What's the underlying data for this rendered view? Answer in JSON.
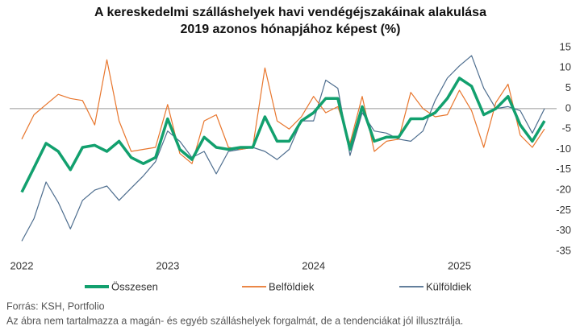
{
  "chart_data": {
    "type": "line",
    "title": [
      "A kereskedelmi szálláshelyek havi vendégéjszakáinak alakulása",
      "2019 azonos hónapjához képest (%)"
    ],
    "categories": [
      "2022",
      null,
      null,
      null,
      null,
      null,
      null,
      null,
      null,
      null,
      null,
      null,
      "2023",
      null,
      null,
      null,
      null,
      null,
      null,
      null,
      null,
      null,
      null,
      null,
      "2024",
      null,
      null,
      null,
      null,
      null,
      null,
      null,
      null,
      null,
      null,
      null,
      "2025",
      null,
      null,
      null,
      null,
      null,
      null,
      null
    ],
    "series": [
      {
        "name": "Összesen",
        "color": "#12a06e",
        "width": 3.5,
        "values": [
          -20.5,
          -14.5,
          -8.5,
          -10.5,
          -15,
          -9.5,
          -9,
          -10.5,
          -8,
          -12,
          -13.5,
          -12,
          -2.5,
          -10,
          -12.5,
          -7,
          -9.5,
          -10,
          -9.5,
          -9.5,
          -2,
          -8,
          -8,
          -3,
          -1,
          2.5,
          2.5,
          -10,
          0.5,
          -8,
          -7,
          -7,
          -2.5,
          -2.5,
          -1,
          2.5,
          7.5,
          5.5,
          -1.5,
          0,
          3,
          -4,
          -8,
          -3
        ]
      },
      {
        "name": "Belföldiek",
        "color": "#e8762d",
        "width": 1.2,
        "values": [
          -7.5,
          -1.5,
          1,
          3.5,
          2.5,
          2,
          -4,
          12,
          -3,
          -10.5,
          -10,
          -9.5,
          1,
          -11,
          -13.5,
          -3,
          -1.5,
          -9.5,
          -10,
          -9.5,
          10,
          -3,
          -5,
          -2,
          3,
          -1,
          0.5,
          -8.5,
          3,
          -10.5,
          -8,
          -7.5,
          4,
          0,
          -2,
          -1.5,
          4.5,
          -0.5,
          -9.5,
          1.5,
          6,
          -6.5,
          -9.5,
          -5
        ]
      },
      {
        "name": "Külföldiek",
        "color": "#4d6d8e",
        "width": 1.2,
        "values": [
          -32.5,
          -27,
          -18,
          -23,
          -29.5,
          -22.5,
          -20,
          -19,
          -22.5,
          -19.5,
          -16.5,
          -13,
          -5.5,
          -8,
          -12,
          -10.5,
          -16,
          -10.5,
          -10,
          -9.5,
          -10.5,
          -12.5,
          -10,
          -3,
          -3,
          7,
          5,
          -11.5,
          -1,
          -5.5,
          -6,
          -7.5,
          -8,
          -5.5,
          2,
          7.5,
          10.5,
          13,
          5,
          0,
          0.5,
          -0.5,
          -6,
          0
        ]
      }
    ],
    "ylim": [
      -35,
      15
    ],
    "yticks": [
      15,
      10,
      5,
      0,
      -5,
      -10,
      -15,
      -20,
      -25,
      -30,
      -35
    ],
    "source": [
      "Forrás: KSH, Portfolio",
      "Az ábra nem tartalmazza a magán- és egyéb szálláshelyek forgalmát, de a tendenciákat jól illusztrálja."
    ]
  }
}
